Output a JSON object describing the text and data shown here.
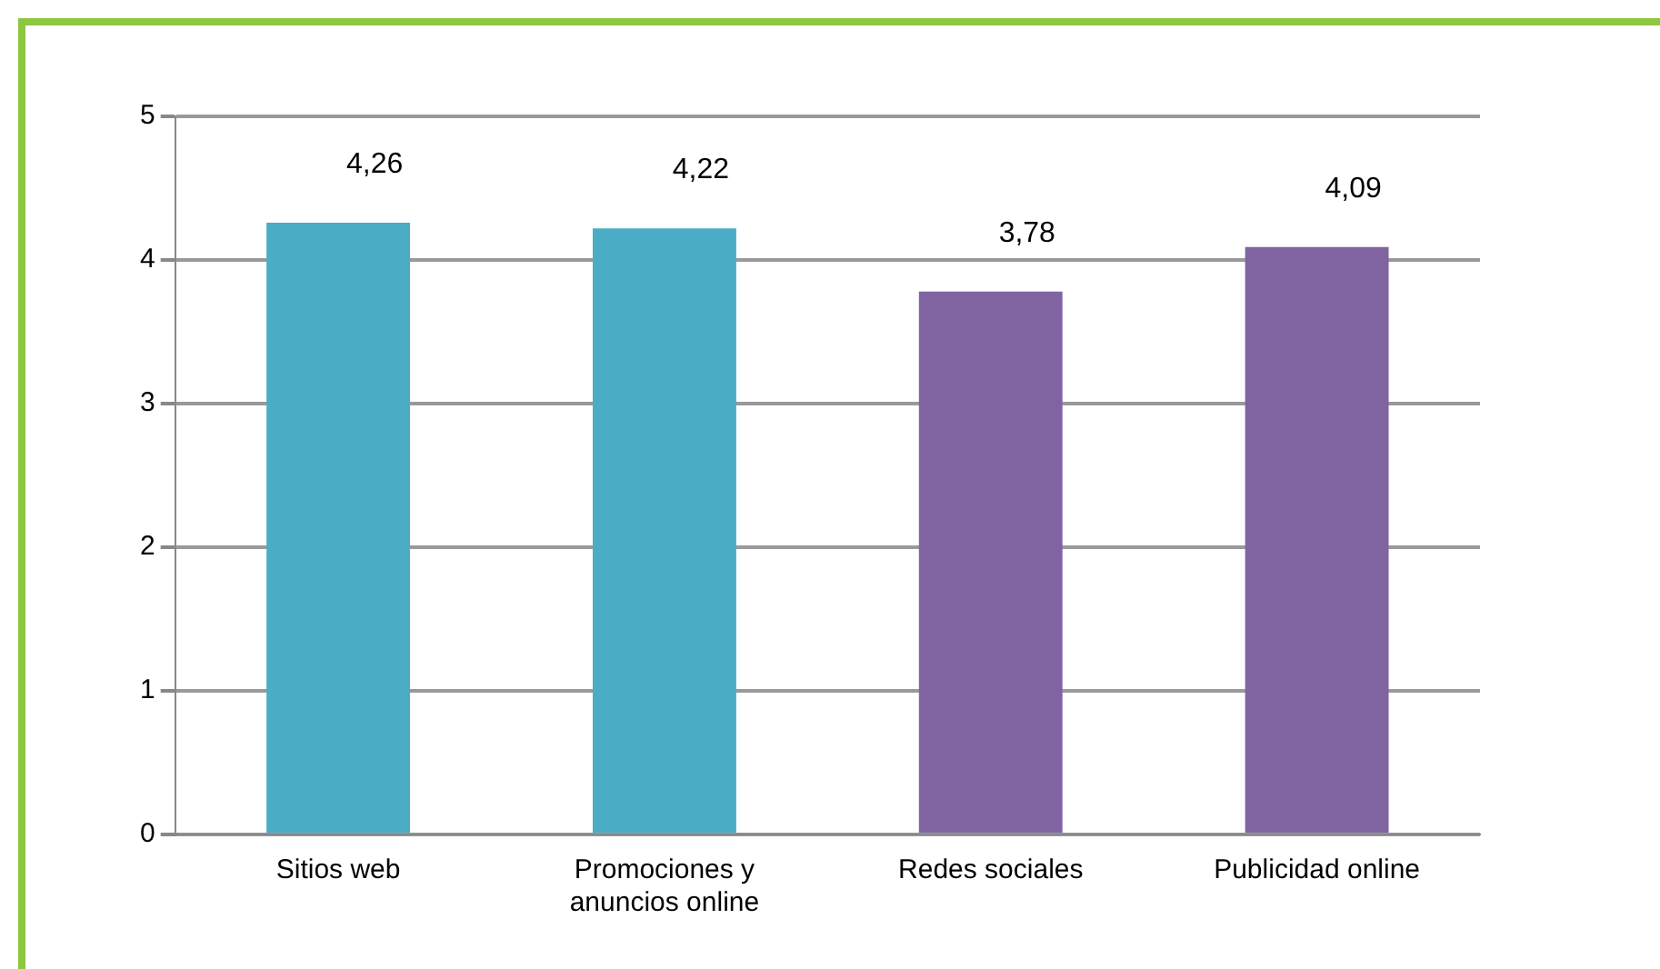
{
  "chart_data": {
    "type": "bar",
    "categories": [
      "Sitios web",
      "Promociones y anuncios online",
      "Redes sociales",
      "Publicidad online"
    ],
    "values": [
      4.26,
      4.22,
      3.78,
      4.09
    ],
    "colors": [
      "#4bacc6",
      "#4bacc6",
      "#8064a2",
      "#8064a2"
    ],
    "value_labels": [
      "4,26",
      "4,22",
      "3,78",
      "4,09"
    ],
    "ylim": [
      0,
      5
    ],
    "yticks": [
      0,
      1,
      2,
      3,
      4,
      5
    ],
    "grid": "y"
  }
}
